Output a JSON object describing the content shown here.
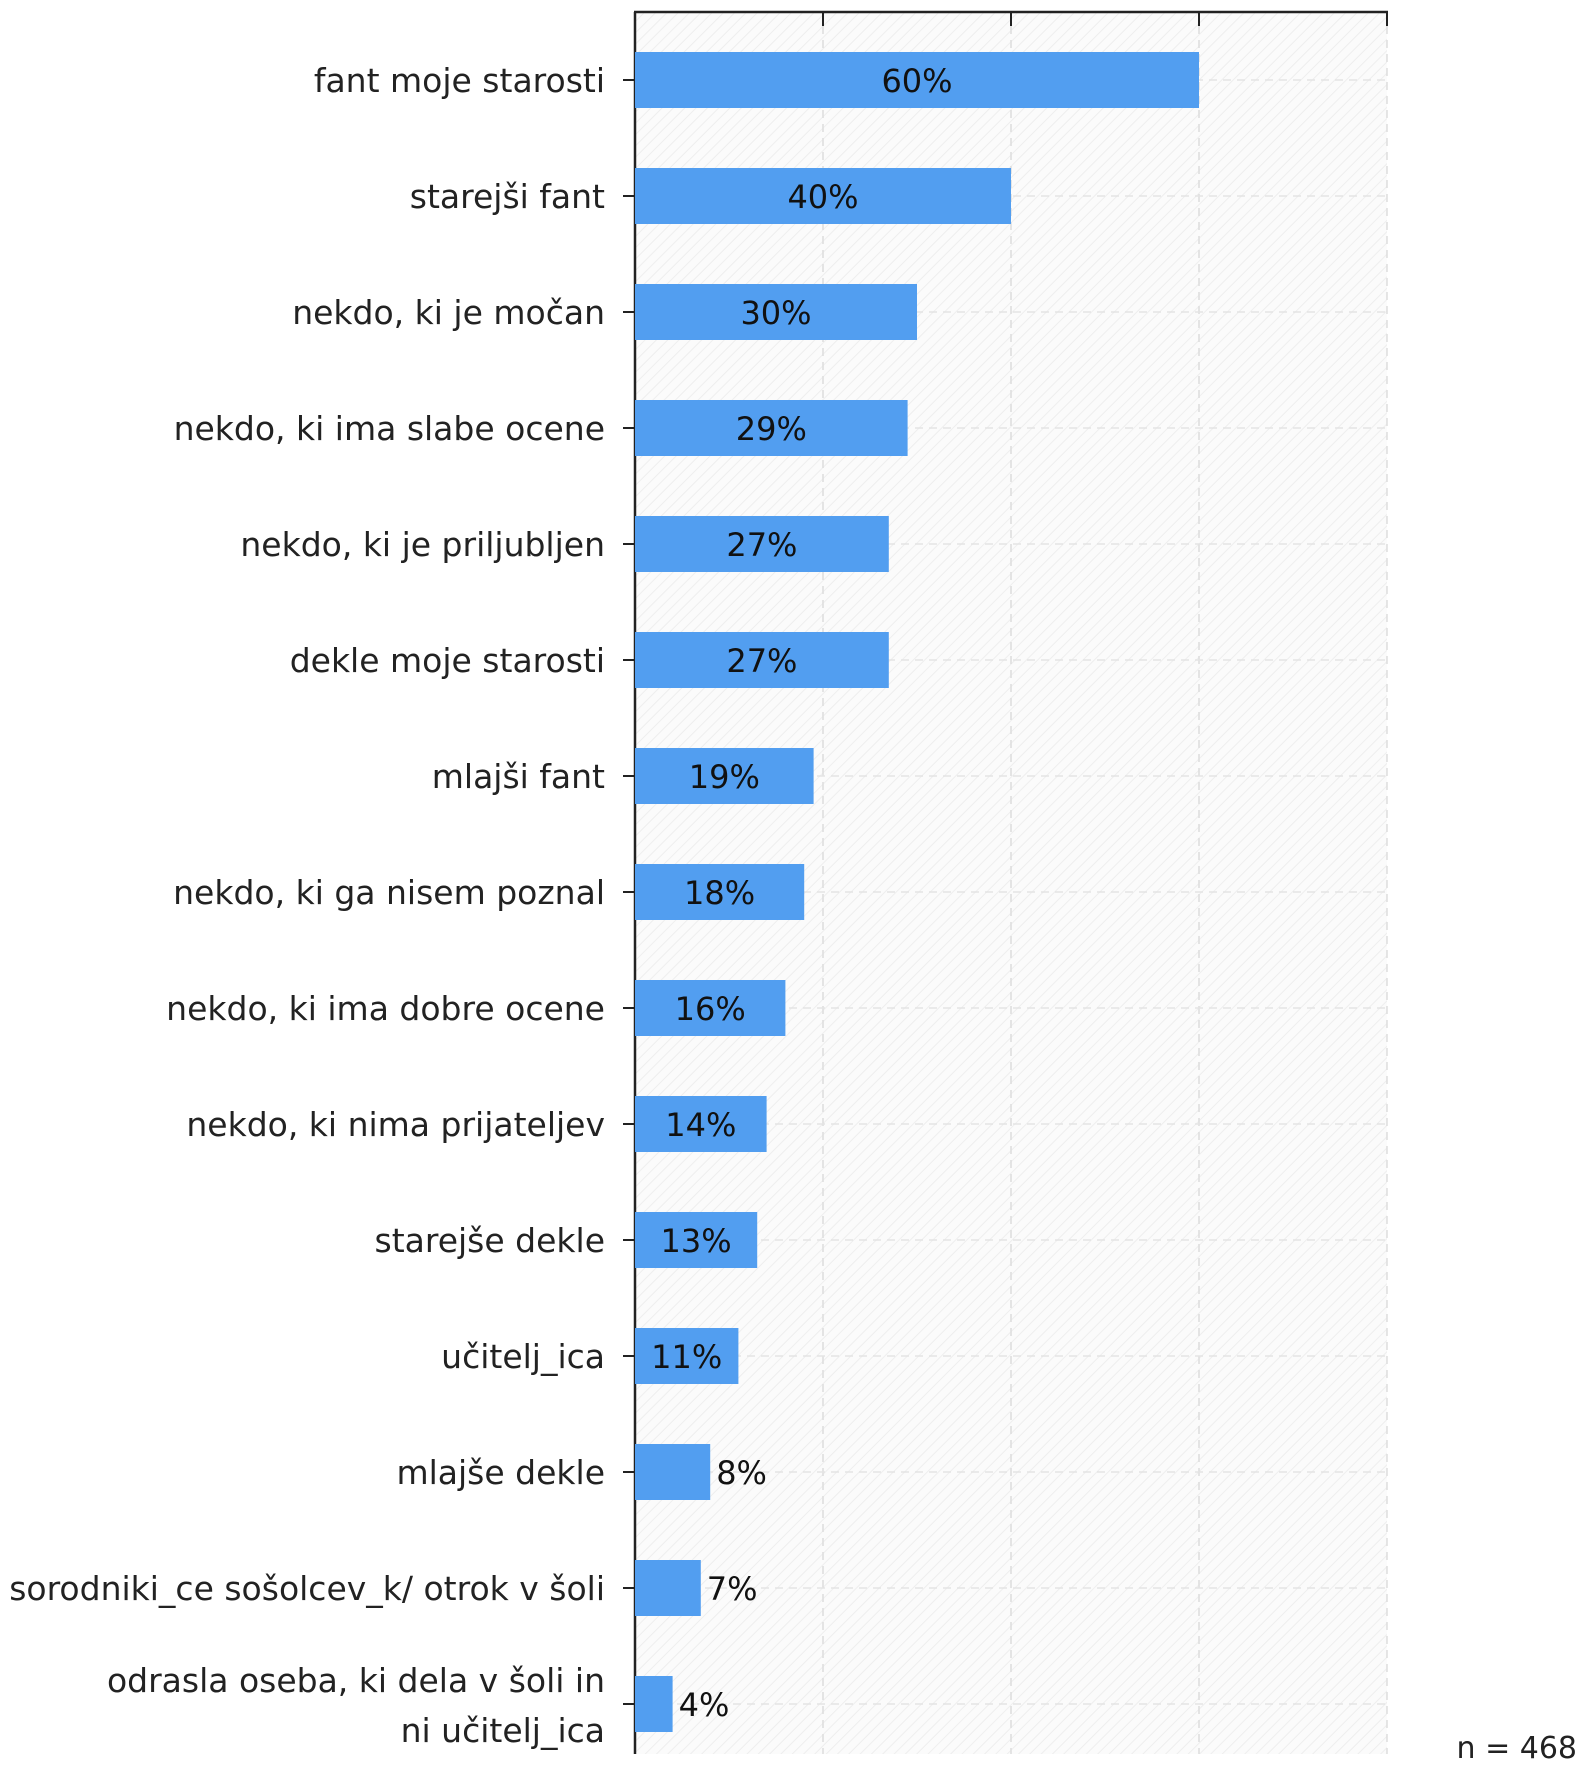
{
  "chart_data": {
    "type": "bar",
    "orientation": "horizontal",
    "categories": [
      "fant moje starosti",
      "starejši fant",
      "nekdo, ki je močan",
      "nekdo, ki ima slabe ocene",
      "nekdo, ki je priljubljen",
      "dekle moje starosti",
      "mlajši fant",
      "nekdo, ki ga nisem poznal",
      "nekdo, ki ima dobre ocene",
      "nekdo, ki nima prijateljev",
      "starejše dekle",
      "učitelj_ica",
      "mlajše dekle",
      "sorodniki_ce sošolcev_k/ otrok v šoli",
      "odrasla oseba, ki dela v šoli in ni učitelj_ica"
    ],
    "values": [
      60,
      40,
      30,
      29,
      27,
      27,
      19,
      18,
      16,
      14,
      13,
      11,
      8,
      7,
      4
    ],
    "value_labels": [
      "60%",
      "40%",
      "30%",
      "29%",
      "27%",
      "27%",
      "19%",
      "18%",
      "16%",
      "14%",
      "13%",
      "11%",
      "8%",
      "7%",
      "4%"
    ],
    "xlim": [
      0,
      80
    ],
    "x_ticks": [
      0,
      20,
      40,
      60,
      80
    ],
    "grid": true,
    "bar_color": "#529ef0",
    "note": "n = 468"
  }
}
